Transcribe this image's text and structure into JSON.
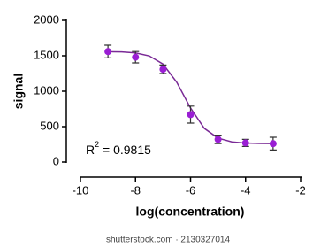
{
  "chart_data": {
    "type": "scatter",
    "x_label": "log(concentration)",
    "y_label": "signal",
    "annotation": {
      "base": "R",
      "superscript": "2",
      "text": " = 0.9815"
    },
    "series": [
      {
        "type": "scatter",
        "color": "#9a1ed4",
        "error_color": "#333333",
        "x": [
          -9,
          -8,
          -7,
          -6,
          -5,
          -4,
          -3
        ],
        "values": [
          1560,
          1480,
          1310,
          670,
          320,
          270,
          260
        ],
        "errors": [
          90,
          80,
          60,
          120,
          60,
          50,
          90
        ]
      },
      {
        "type": "line",
        "color": "#7a2a96",
        "x": [
          -9,
          -8.5,
          -8,
          -7.5,
          -7,
          -6.5,
          -6,
          -5.5,
          -5,
          -4.5,
          -4,
          -3.5,
          -3
        ],
        "values": [
          1558,
          1554,
          1540,
          1498,
          1383,
          1126,
          763,
          476,
          337,
          285,
          268,
          263,
          261
        ]
      }
    ],
    "xlim": [
      -10,
      -2
    ],
    "xticks": [
      -10,
      -8,
      -6,
      -4,
      -2
    ],
    "ylim": [
      0,
      2000
    ],
    "yticks": [
      0,
      500,
      1000,
      1500,
      2000
    ],
    "watermark": "shutterstock.com · 2130327014"
  }
}
